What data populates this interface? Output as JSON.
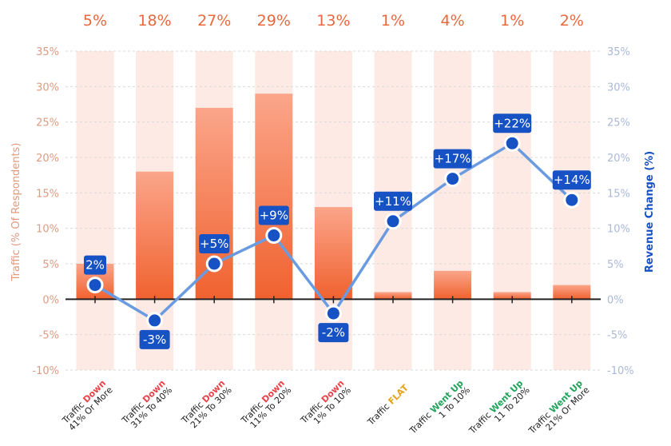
{
  "chart_data": {
    "type": "bar+line",
    "categories": [
      {
        "prefix": "Traffic",
        "status": "Down",
        "range": "41% Or More"
      },
      {
        "prefix": "Traffic",
        "status": "Down",
        "range": "31% To 40%"
      },
      {
        "prefix": "Traffic",
        "status": "Down",
        "range": "21% To 30%"
      },
      {
        "prefix": "Traffic",
        "status": "Down",
        "range": "11% To 20%"
      },
      {
        "prefix": "Traffic",
        "status": "Down",
        "range": "1% To 10%"
      },
      {
        "prefix": "Traffic",
        "status": "FLAT",
        "range": ""
      },
      {
        "prefix": "Traffic",
        "status": "Went Up",
        "range": "1 To 10%"
      },
      {
        "prefix": "Traffic",
        "status": "Went Up",
        "range": "11 To 20%"
      },
      {
        "prefix": "Traffic",
        "status": "Went Up",
        "range": "21% Or More"
      }
    ],
    "bar_series": {
      "values": [
        5,
        18,
        27,
        29,
        13,
        1,
        4,
        1,
        2
      ],
      "labels": [
        "5%",
        "18%",
        "27%",
        "29%",
        "13%",
        "1%",
        "4%",
        "1%",
        "2%"
      ]
    },
    "line_series": {
      "values": [
        2,
        -3,
        5,
        9,
        -2,
        11,
        17,
        22,
        14
      ],
      "labels": [
        "2%",
        "-3%",
        "+5%",
        "+9%",
        "-2%",
        "+11%",
        "+17%",
        "+22%",
        "+14%"
      ]
    },
    "ylabel_left": "Traffic (% Of Respondents)",
    "ylabel_right": "Revenue Change (%)",
    "ylim": [
      -10,
      35
    ],
    "yticks": [
      "-10%",
      "-5%",
      "0%",
      "5%",
      "10%",
      "15%",
      "20%",
      "25%",
      "30%",
      "35%"
    ],
    "grid": true,
    "colors": {
      "bar_top": "#fba58a",
      "bar_bottom": "#f0622f",
      "band": "#fdeae4",
      "bar_label": "#e8683d",
      "left_tick": "#e09a80",
      "right_tick": "#aab8d8",
      "line": "#6a9be0",
      "point": "#1752c4",
      "label_box": "#1752c4",
      "right_axis_label": "#1752c4",
      "status_down": "#e8434a",
      "status_flat": "#e3a21a",
      "status_up": "#22a45d"
    }
  }
}
